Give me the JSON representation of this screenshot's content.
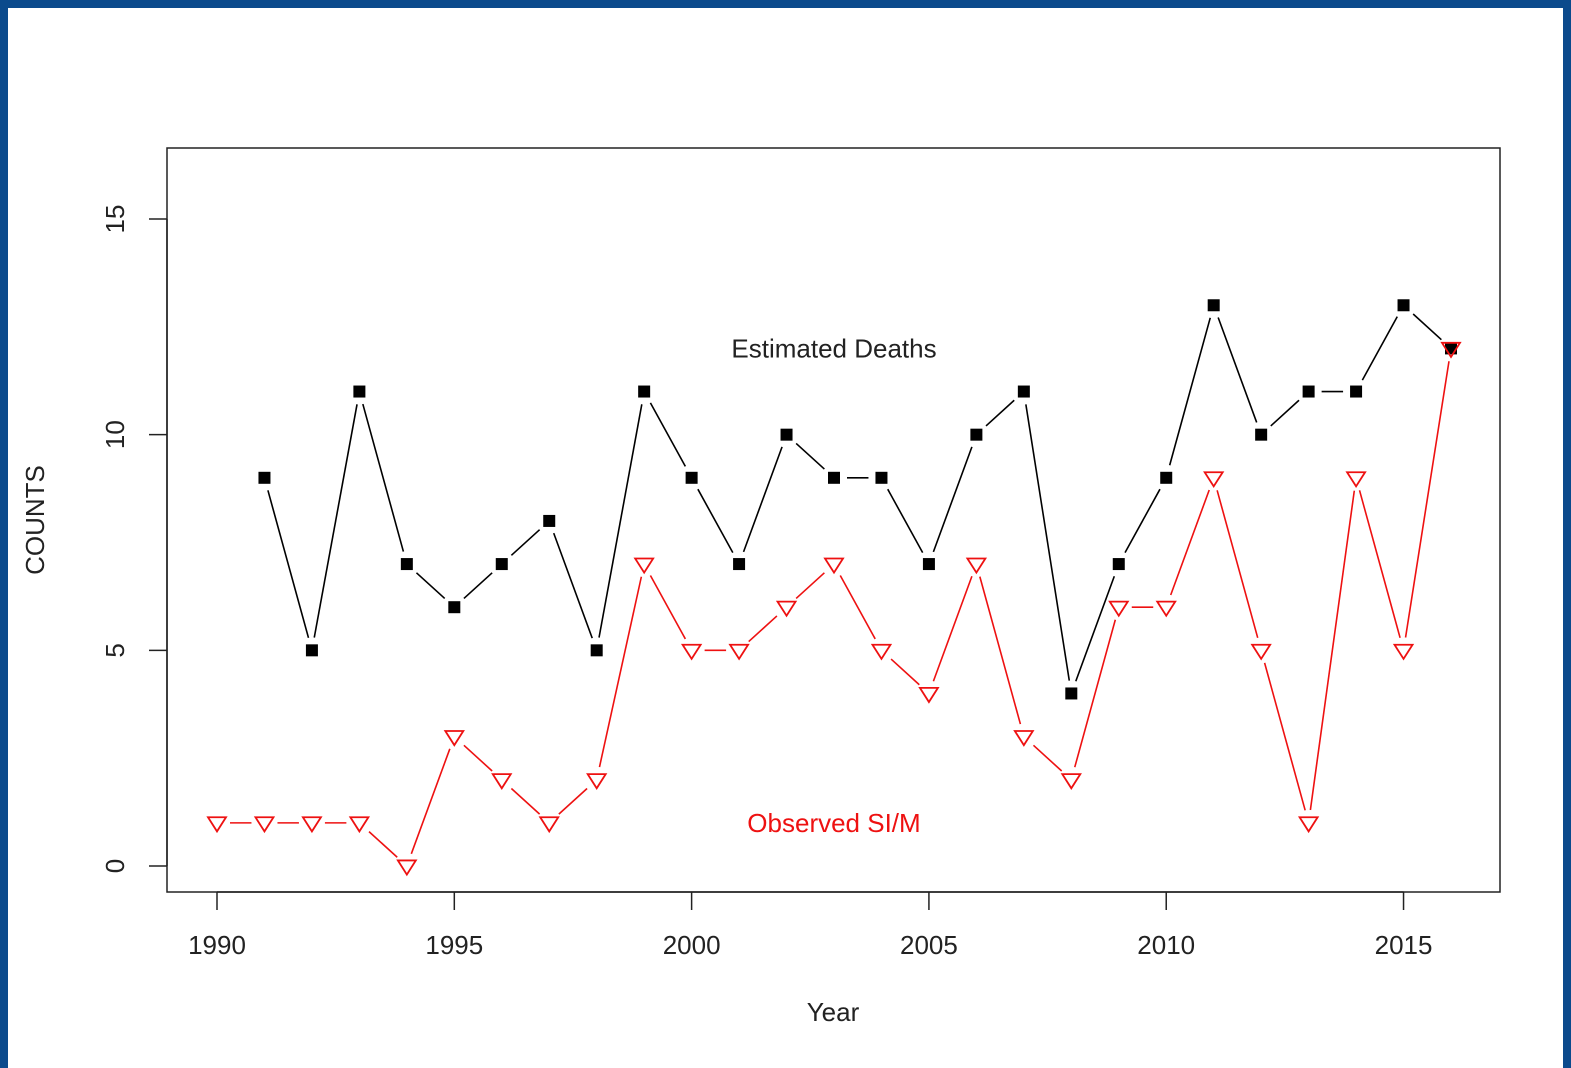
{
  "chart_data": {
    "type": "line",
    "xlabel": "Year",
    "ylabel": "COUNTS",
    "xlim": [
      1990,
      2016
    ],
    "ylim": [
      0,
      15
    ],
    "x_ticks": [
      1990,
      1995,
      2000,
      2005,
      2010,
      2015
    ],
    "y_ticks": [
      0,
      5,
      10,
      15
    ],
    "grid": false,
    "series": [
      {
        "name": "Estimated Deaths",
        "color": "#000000",
        "marker": "filled-square",
        "x": [
          1991,
          1992,
          1993,
          1994,
          1995,
          1996,
          1997,
          1998,
          1999,
          2000,
          2001,
          2002,
          2003,
          2004,
          2005,
          2006,
          2007,
          2008,
          2009,
          2010,
          2011,
          2012,
          2013,
          2014,
          2015,
          2016
        ],
        "values": [
          9,
          5,
          11,
          7,
          6,
          7,
          8,
          5,
          11,
          9,
          7,
          10,
          9,
          9,
          7,
          10,
          11,
          4,
          7,
          9,
          13,
          10,
          11,
          11,
          13,
          12
        ]
      },
      {
        "name": "Observed SI/M",
        "color": "#ee1111",
        "marker": "open-down-triangle",
        "x": [
          1990,
          1991,
          1992,
          1993,
          1994,
          1995,
          1996,
          1997,
          1998,
          1999,
          2000,
          2001,
          2002,
          2003,
          2004,
          2005,
          2006,
          2007,
          2008,
          2009,
          2010,
          2011,
          2012,
          2013,
          2014,
          2015,
          2016
        ],
        "values": [
          1,
          1,
          1,
          1,
          0,
          3,
          2,
          1,
          2,
          7,
          5,
          5,
          6,
          7,
          5,
          4,
          7,
          3,
          2,
          6,
          6,
          9,
          5,
          1,
          9,
          5,
          12
        ]
      }
    ],
    "annotations": [
      {
        "text": "Estimated Deaths",
        "x": 2003,
        "y": 12,
        "color": "#222222"
      },
      {
        "text": "Observed SI/M",
        "x": 2003,
        "y": 1,
        "color": "#ee1111"
      }
    ]
  }
}
